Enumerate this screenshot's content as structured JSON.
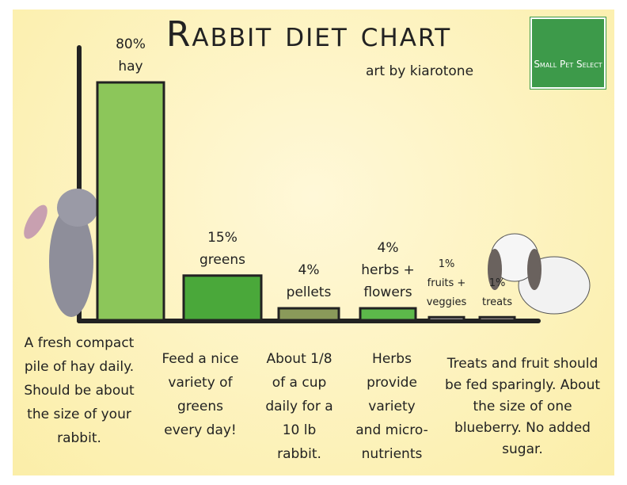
{
  "chart_data": {
    "type": "bar",
    "title": "Rabbit diet chart",
    "subtitle": "art by kiarotone",
    "logo": "Small Pet Select",
    "categories": [
      "hay",
      "greens",
      "pellets",
      "herbs + flowers",
      "fruits + veggies",
      "treats"
    ],
    "values": [
      80,
      15,
      4,
      4,
      1,
      1
    ],
    "value_labels": [
      "80%",
      "15%",
      "4%",
      "4%",
      "1%",
      "1%"
    ],
    "colors": [
      "#8cc65a",
      "#4aa83a",
      "#8a9a5a",
      "#5cb84a",
      "#efe6ef",
      "#e8dcd6"
    ],
    "notes": [
      "A fresh compact pile of hay daily. Should be about the size of your rabbit.",
      "Feed a nice variety of greens every day!",
      "About 1/8 of a cup daily for a 10 lb rabbit.",
      "Herbs provide variety and micro-nutrients",
      "Treats and fruit should be fed sparingly. About the size of one blueberry. No added sugar."
    ]
  }
}
